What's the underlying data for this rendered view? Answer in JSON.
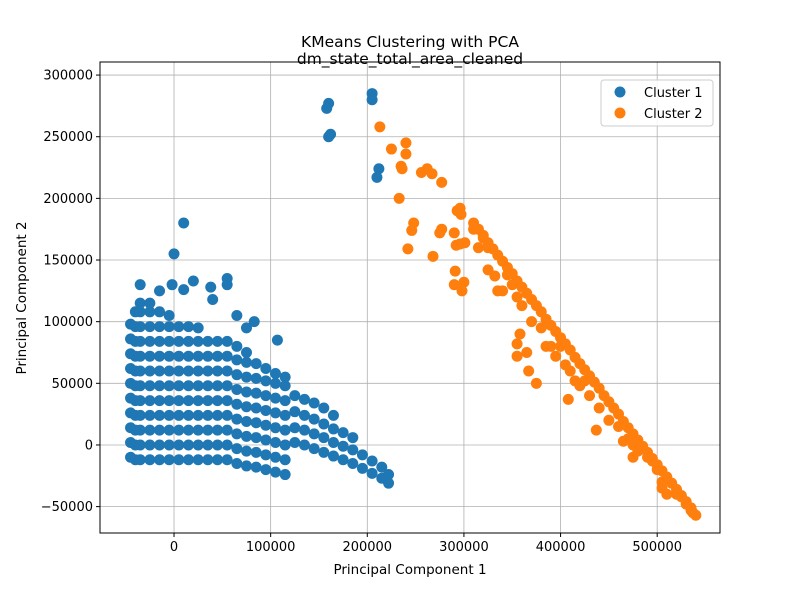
{
  "chart_data": {
    "type": "scatter",
    "title": "KMeans Clustering with PCA",
    "subtitle": "dm_state_total_area_cleaned",
    "xlabel": "Principal Component 1",
    "ylabel": "Principal Component 2",
    "xlim": [
      -76600,
      565000
    ],
    "ylim": [
      -71400,
      310600
    ],
    "grid": true,
    "legend_placement": "top-right",
    "xticks": [
      {
        "v": 0,
        "label": "0"
      },
      {
        "v": 100000,
        "label": "100000"
      },
      {
        "v": 200000,
        "label": "200000"
      },
      {
        "v": 300000,
        "label": "300000"
      },
      {
        "v": 400000,
        "label": "400000"
      },
      {
        "v": 500000,
        "label": "500000"
      }
    ],
    "yticks": [
      {
        "v": -50000,
        "label": "−50000"
      },
      {
        "v": 0,
        "label": "0"
      },
      {
        "v": 50000,
        "label": "50000"
      },
      {
        "v": 100000,
        "label": "100000"
      },
      {
        "v": 150000,
        "label": "150000"
      },
      {
        "v": 200000,
        "label": "200000"
      },
      {
        "v": 250000,
        "label": "250000"
      },
      {
        "v": 300000,
        "label": "300000"
      }
    ],
    "series": [
      {
        "name": "Cluster 1",
        "color": "#1f77b4",
        "columns": [
          {
            "x": -45000,
            "y": [
              -10000,
              2000,
              14000,
              26000,
              38000,
              50000,
              62000,
              74000,
              86000,
              98000
            ]
          },
          {
            "x": -40000,
            "y": [
              -12000,
              0,
              12000,
              24000,
              36000,
              48000,
              60000,
              72000,
              84000,
              96000,
              108000
            ]
          },
          {
            "x": -35000,
            "y": [
              -12000,
              0,
              12000,
              24000,
              36000,
              48000,
              60000,
              72000,
              84000,
              96000,
              108000,
              115000
            ]
          },
          {
            "x": -25000,
            "y": [
              -12000,
              0,
              12000,
              24000,
              36000,
              48000,
              60000,
              72000,
              84000,
              96000,
              108000,
              115000
            ]
          },
          {
            "x": -15000,
            "y": [
              -12000,
              0,
              12000,
              24000,
              36000,
              48000,
              60000,
              72000,
              84000,
              96000,
              108000
            ]
          },
          {
            "x": -5000,
            "y": [
              -12000,
              0,
              12000,
              24000,
              36000,
              48000,
              60000,
              72000,
              84000,
              96000,
              105000
            ]
          },
          {
            "x": 5000,
            "y": [
              -12000,
              0,
              12000,
              24000,
              36000,
              48000,
              60000,
              72000,
              84000,
              96000
            ]
          },
          {
            "x": 15000,
            "y": [
              -12000,
              0,
              12000,
              24000,
              36000,
              48000,
              60000,
              72000,
              84000,
              96000
            ]
          },
          {
            "x": 25000,
            "y": [
              -12000,
              0,
              12000,
              24000,
              36000,
              48000,
              60000,
              72000,
              84000,
              95000
            ]
          },
          {
            "x": 35000,
            "y": [
              -12000,
              0,
              12000,
              24000,
              36000,
              48000,
              60000,
              72000,
              84000
            ]
          },
          {
            "x": 45000,
            "y": [
              -12000,
              0,
              12000,
              24000,
              36000,
              48000,
              60000,
              72000,
              84000
            ]
          },
          {
            "x": 55000,
            "y": [
              -12000,
              0,
              12000,
              24000,
              36000,
              48000,
              60000,
              72000,
              84000
            ]
          },
          {
            "x": 65000,
            "y": [
              -15000,
              -3000,
              9000,
              21000,
              33000,
              45000,
              57000,
              69000,
              80000
            ]
          },
          {
            "x": 75000,
            "y": [
              -17000,
              -5000,
              7000,
              19000,
              31000,
              43000,
              55000,
              67000,
              75000
            ]
          },
          {
            "x": 85000,
            "y": [
              -18000,
              -6000,
              6000,
              18000,
              30000,
              42000,
              54000,
              66000
            ]
          },
          {
            "x": 95000,
            "y": [
              -20000,
              -8000,
              4000,
              16000,
              28000,
              40000,
              52000,
              62000
            ]
          },
          {
            "x": 105000,
            "y": [
              -22000,
              -10000,
              2000,
              14000,
              26000,
              38000,
              50000,
              58000
            ]
          },
          {
            "x": 115000,
            "y": [
              -24000,
              -12000,
              0,
              12000,
              24000,
              36000,
              48000,
              55000
            ]
          },
          {
            "x": 125000,
            "y": [
              2000,
              14000,
              27000,
              40000
            ]
          },
          {
            "x": 135000,
            "y": [
              0,
              12000,
              24000,
              37000
            ]
          },
          {
            "x": 145000,
            "y": [
              -3000,
              9000,
              21000,
              34000
            ]
          },
          {
            "x": 155000,
            "y": [
              -6000,
              6000,
              17000,
              30000
            ]
          },
          {
            "x": 165000,
            "y": [
              -9000,
              2000,
              13000,
              24000
            ]
          },
          {
            "x": 175000,
            "y": [
              -12000,
              -1000,
              10000
            ]
          },
          {
            "x": 185000,
            "y": [
              -15000,
              -4000,
              6000
            ]
          },
          {
            "x": 195000,
            "y": [
              -19000,
              -8000
            ]
          },
          {
            "x": 205000,
            "y": [
              -23000,
              -13000
            ]
          },
          {
            "x": 215000,
            "y": [
              -27000,
              -18000
            ]
          },
          {
            "x": 222000,
            "y": [
              -31000,
              -24000
            ]
          }
        ],
        "points": [
          [
            10000,
            180000
          ],
          [
            0,
            155000
          ],
          [
            -2000,
            130000
          ],
          [
            20000,
            133000
          ],
          [
            55000,
            135000
          ],
          [
            55000,
            130000
          ],
          [
            38000,
            128000
          ],
          [
            10000,
            126000
          ],
          [
            -35000,
            130000
          ],
          [
            -15000,
            125000
          ],
          [
            160000,
            277000
          ],
          [
            158000,
            273000
          ],
          [
            162000,
            252000
          ],
          [
            160000,
            250000
          ],
          [
            205000,
            285000
          ],
          [
            205000,
            280000
          ],
          [
            212000,
            224000
          ],
          [
            210000,
            217000
          ],
          [
            83000,
            100000
          ],
          [
            107000,
            85000
          ],
          [
            65000,
            105000
          ],
          [
            40000,
            118000
          ],
          [
            75000,
            95000
          ]
        ]
      },
      {
        "name": "Cluster 2",
        "color": "#ff7f0e",
        "points": [
          [
            213000,
            258000
          ],
          [
            225000,
            240000
          ],
          [
            235000,
            226000
          ],
          [
            240000,
            245000
          ],
          [
            240000,
            236000
          ],
          [
            236000,
            224000
          ],
          [
            233000,
            200000
          ],
          [
            242000,
            159000
          ],
          [
            248000,
            180000
          ],
          [
            246000,
            174000
          ],
          [
            256000,
            221000
          ],
          [
            262000,
            224000
          ],
          [
            267000,
            220000
          ],
          [
            277000,
            213000
          ],
          [
            268000,
            153000
          ],
          [
            275000,
            172000
          ],
          [
            277000,
            175000
          ],
          [
            290000,
            172000
          ],
          [
            293000,
            190000
          ],
          [
            296000,
            192000
          ],
          [
            297000,
            187000
          ],
          [
            292000,
            162000
          ],
          [
            296000,
            163000
          ],
          [
            301000,
            164000
          ],
          [
            291000,
            141000
          ],
          [
            300000,
            132000
          ],
          [
            290000,
            130000
          ],
          [
            298000,
            125000
          ],
          [
            310000,
            175000
          ],
          [
            315000,
            160000
          ],
          [
            320000,
            168000
          ],
          [
            325000,
            160000
          ],
          [
            325000,
            142000
          ],
          [
            332000,
            137000
          ],
          [
            335000,
            125000
          ],
          [
            340000,
            125000
          ],
          [
            345000,
            138000
          ],
          [
            350000,
            130000
          ],
          [
            355000,
            120000
          ],
          [
            360000,
            113000
          ],
          [
            355000,
            82000
          ],
          [
            355000,
            72000
          ],
          [
            358000,
            90000
          ],
          [
            365000,
            75000
          ],
          [
            367000,
            60000
          ],
          [
            375000,
            50000
          ],
          [
            370000,
            100000
          ],
          [
            380000,
            95000
          ],
          [
            385000,
            80000
          ],
          [
            390000,
            80000
          ],
          [
            395000,
            72000
          ],
          [
            400000,
            80000
          ],
          [
            405000,
            65000
          ],
          [
            408000,
            37000
          ],
          [
            410000,
            60000
          ],
          [
            415000,
            52000
          ],
          [
            420000,
            48000
          ],
          [
            425000,
            52000
          ],
          [
            430000,
            40000
          ],
          [
            437000,
            12000
          ],
          [
            440000,
            30000
          ],
          [
            450000,
            20000
          ],
          [
            460000,
            15000
          ],
          [
            465000,
            3000
          ],
          [
            470000,
            5000
          ],
          [
            475000,
            0
          ],
          [
            480000,
            -5000
          ],
          [
            475000,
            -10000
          ],
          [
            490000,
            -10000
          ],
          [
            495000,
            -13000
          ],
          [
            500000,
            -20000
          ],
          [
            505000,
            -30000
          ],
          [
            510000,
            -40000
          ],
          [
            505000,
            -35000
          ],
          [
            520000,
            -40000
          ],
          [
            525000,
            -42000
          ],
          [
            530000,
            -48000
          ],
          [
            535000,
            -53000
          ],
          [
            537000,
            -55000
          ],
          [
            310000,
            180000
          ],
          [
            315000,
            175000
          ],
          [
            320000,
            170000
          ],
          [
            325000,
            164000
          ],
          [
            330000,
            159000
          ],
          [
            335000,
            154000
          ],
          [
            340000,
            149000
          ],
          [
            345000,
            144000
          ],
          [
            350000,
            139000
          ],
          [
            355000,
            133000
          ],
          [
            360000,
            128000
          ],
          [
            365000,
            123000
          ],
          [
            370000,
            118000
          ],
          [
            375000,
            113000
          ],
          [
            380000,
            108000
          ],
          [
            385000,
            102000
          ],
          [
            390000,
            97000
          ],
          [
            395000,
            92000
          ],
          [
            400000,
            87000
          ],
          [
            405000,
            82000
          ],
          [
            410000,
            77000
          ],
          [
            415000,
            71000
          ],
          [
            420000,
            66000
          ],
          [
            425000,
            61000
          ],
          [
            430000,
            56000
          ],
          [
            435000,
            51000
          ],
          [
            440000,
            46000
          ],
          [
            445000,
            40000
          ],
          [
            450000,
            35000
          ],
          [
            455000,
            30000
          ],
          [
            460000,
            25000
          ],
          [
            465000,
            19000
          ],
          [
            470000,
            14000
          ],
          [
            475000,
            9000
          ],
          [
            480000,
            4000
          ],
          [
            485000,
            -1000
          ],
          [
            490000,
            -6000
          ],
          [
            495000,
            -11000
          ],
          [
            500000,
            -16000
          ],
          [
            505000,
            -21000
          ],
          [
            510000,
            -26000
          ],
          [
            515000,
            -31000
          ],
          [
            520000,
            -36000
          ],
          [
            525000,
            -41000
          ],
          [
            530000,
            -46000
          ],
          [
            535000,
            -51000
          ],
          [
            540000,
            -57000
          ]
        ]
      }
    ]
  }
}
